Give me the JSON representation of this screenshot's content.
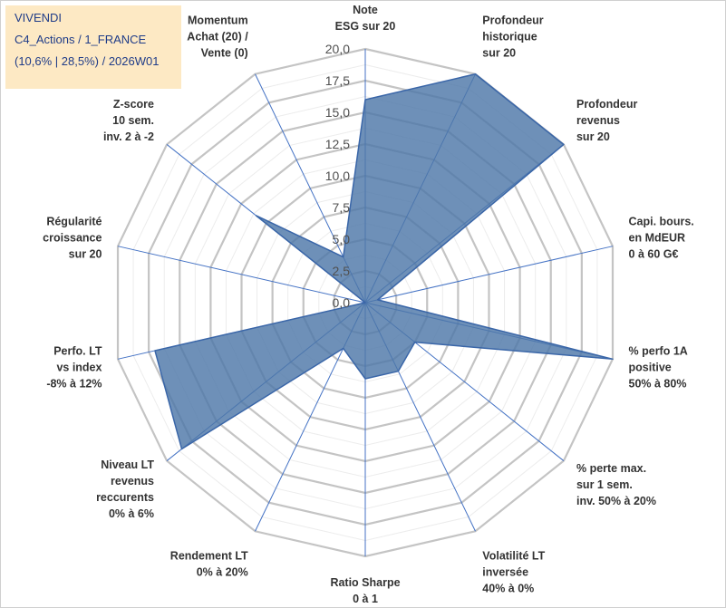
{
  "info": {
    "name": "VIVENDI",
    "category": "C4_Actions / 1_FRANCE",
    "details": "(10,6% | 28,5%) / 2026W01"
  },
  "chart_data": {
    "type": "radar",
    "title": "VIVENDI",
    "r_range": [
      0,
      20
    ],
    "r_ticks": [
      "0,0",
      "2,5",
      "5,0",
      "7,5",
      "10,0",
      "12,5",
      "15,0",
      "17,5",
      "20,0"
    ],
    "minor_step": 1.25,
    "axes": [
      [
        "Note",
        "ESG sur 20"
      ],
      [
        "Profondeur",
        "historique",
        "sur 20"
      ],
      [
        "Profondeur",
        "revenus",
        "sur 20"
      ],
      [
        "Capi. bours.",
        "en MdEUR",
        "0 à 60 G€"
      ],
      [
        "% perfo 1A",
        "positive",
        "50% à 80%"
      ],
      [
        "% perte max.",
        "sur 1 sem.",
        "inv. 50% à 20%"
      ],
      [
        "Volatilité LT",
        "inversée",
        "40% à 0%"
      ],
      [
        "Ratio Sharpe",
        "0 à 1"
      ],
      [
        "Rendement LT",
        "0% à 20%"
      ],
      [
        "Niveau LT",
        "revenus",
        "reccurents",
        "0% à 6%"
      ],
      [
        "Perfo. LT",
        "vs index",
        "-8% à 12%"
      ],
      [
        "Régularité",
        "croissance",
        "sur 20"
      ],
      [
        "Z-score",
        "10 sem.",
        "inv. 2 à -2"
      ],
      [
        "Momentum",
        "Achat (20) /",
        "Vente (0)"
      ]
    ],
    "series": [
      {
        "name": "VIVENDI",
        "values": [
          16.0,
          20.0,
          20.0,
          1.0,
          20.0,
          5.0,
          6.0,
          6.0,
          4.0,
          18.5,
          17.0,
          0.0,
          11.0,
          4.0
        ],
        "color": "#4e78a8"
      }
    ]
  }
}
